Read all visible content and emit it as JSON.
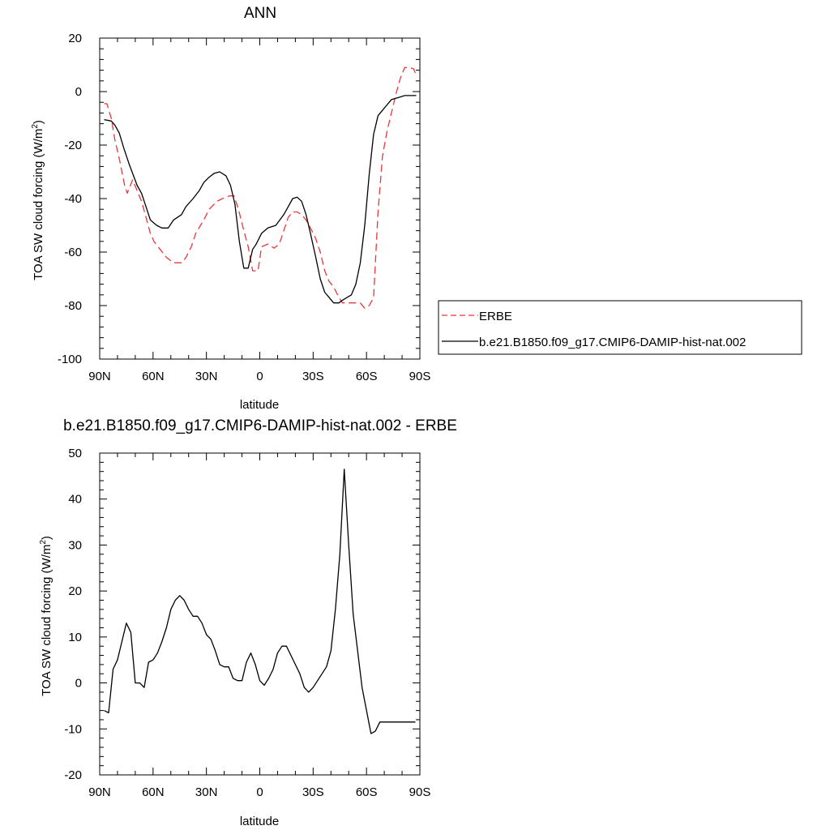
{
  "chart_data": [
    {
      "type": "line",
      "title": "ANN",
      "xlabel": "latitude",
      "ylabel": "TOA SW cloud forcing (W/m",
      "ylabel_sup": "2",
      "ylabel_close": ")",
      "xlim": [
        90,
        -90
      ],
      "ylim": [
        -100,
        20
      ],
      "x_ticks": [
        90,
        60,
        30,
        0,
        -30,
        -60,
        -90
      ],
      "x_tick_labels": [
        "90N",
        "60N",
        "30N",
        "0",
        "30S",
        "60S",
        "90S"
      ],
      "y_ticks": [
        -100,
        -80,
        -60,
        -40,
        -20,
        0,
        20
      ],
      "y_tick_labels": [
        "-100",
        "-80",
        "-60",
        "-40",
        "-20",
        "0",
        "20"
      ],
      "grid": false,
      "legend": "right-outside",
      "series": [
        {
          "name": "ERBE",
          "color": "#e8373a",
          "dash": "dashed",
          "x": [
            87.5,
            86.0,
            83.5,
            81.5,
            79.0,
            76.0,
            74.5,
            71.5,
            69.0,
            66.5,
            64.0,
            61.5,
            59.5,
            56.0,
            52.5,
            48.5,
            44.0,
            41.5,
            38.5,
            36.0,
            31.5,
            28.5,
            24.0,
            21.0,
            17.0,
            14.5,
            12.0,
            9.0,
            6.5,
            4.0,
            1.0,
            -1.0,
            -4.5,
            -8.0,
            -11.0,
            -13.5,
            -16.0,
            -18.5,
            -21.0,
            -23.5,
            -26.0,
            -28.5,
            -31.5,
            -34.0,
            -36.5,
            -39.0,
            -41.5,
            -44.5,
            -46.5,
            -49.0,
            -51.5,
            -54.0,
            -56.5,
            -59.0,
            -61.5,
            -64.0,
            -66.5,
            -69.0,
            -71.5,
            -74.0,
            -76.5,
            -79.0,
            -81.5,
            -84.0,
            -86.5,
            -88.0
          ],
          "values": [
            -4.5,
            -4.5,
            -10,
            -18,
            -25,
            -35,
            -38,
            -33,
            -37,
            -41,
            -47,
            -53,
            -56,
            -59,
            -62,
            -64,
            -64,
            -62,
            -58,
            -53,
            -48,
            -44,
            -41,
            -40,
            -39,
            -39,
            -44,
            -52,
            -58,
            -67,
            -67,
            -58,
            -57,
            -58.5,
            -57,
            -52,
            -47,
            -45,
            -45,
            -46,
            -48,
            -51,
            -55,
            -60,
            -67,
            -71,
            -73,
            -77,
            -79,
            -79,
            -79,
            -79,
            -79,
            -81,
            -80,
            -77,
            -45,
            -24,
            -15,
            -8,
            -1,
            5,
            9,
            9,
            8.5,
            6
          ]
        },
        {
          "name": "b.e21.B1850.f09_g17.CMIP6-DAMIP-hist-nat.002",
          "color": "#000000",
          "dash": "solid",
          "x": [
            87.5,
            83.5,
            81.5,
            79.0,
            76.5,
            73.5,
            69.0,
            66.5,
            64.0,
            61.5,
            58.0,
            55.0,
            51.5,
            48.5,
            44.0,
            41.5,
            37.5,
            34.0,
            31.5,
            28.5,
            25.5,
            22.5,
            19.0,
            16.5,
            14.0,
            11.5,
            9.0,
            6.5,
            4.0,
            2.0,
            -1.0,
            -4.5,
            -9.0,
            -13.5,
            -16.0,
            -18.5,
            -21.0,
            -23.5,
            -26.0,
            -28.5,
            -31.5,
            -34.0,
            -36.5,
            -39.0,
            -41.5,
            -44.5,
            -46.5,
            -49.0,
            -51.5,
            -54.0,
            -56.5,
            -59.0,
            -61.5,
            -64.0,
            -66.5,
            -69.0,
            -71.5,
            -74.0,
            -76.5,
            -79.0,
            -81.5,
            -84.0,
            -86.5,
            -88.0
          ],
          "values": [
            -10.5,
            -11,
            -12.5,
            -15.5,
            -21,
            -27,
            -35,
            -38,
            -43,
            -48,
            -50,
            -51,
            -51,
            -48,
            -46,
            -43,
            -40,
            -37,
            -34,
            -32,
            -30.5,
            -30,
            -31.5,
            -35,
            -42,
            -56,
            -66,
            -66,
            -59,
            -57,
            -53,
            -51,
            -50,
            -46,
            -43,
            -40,
            -39.5,
            -41,
            -46,
            -53,
            -62,
            -70,
            -75,
            -77,
            -79,
            -79,
            -78,
            -77,
            -76,
            -72,
            -64,
            -50,
            -31,
            -16,
            -9,
            -7,
            -5,
            -3,
            -2.5,
            -2,
            -1.5,
            -1.5,
            -1.5,
            -1.5
          ]
        }
      ]
    },
    {
      "type": "line",
      "title": "b.e21.B1850.f09_g17.CMIP6-DAMIP-hist-nat.002 - ERBE",
      "xlabel": "latitude",
      "ylabel": "TOA SW cloud forcing (W/m",
      "ylabel_sup": "2",
      "ylabel_close": ")",
      "xlim": [
        90,
        -90
      ],
      "ylim": [
        -20,
        50
      ],
      "x_ticks": [
        90,
        60,
        30,
        0,
        -30,
        -60,
        -90
      ],
      "x_tick_labels": [
        "90N",
        "60N",
        "30N",
        "0",
        "30S",
        "60S",
        "90S"
      ],
      "y_ticks": [
        -20,
        -10,
        0,
        10,
        20,
        30,
        40,
        50
      ],
      "y_tick_labels": [
        "-20",
        "-10",
        "0",
        "10",
        "20",
        "30",
        "40",
        "50"
      ],
      "grid": false,
      "series": [
        {
          "color": "#000000",
          "dash": "solid",
          "x": [
            87.5,
            85.0,
            82.5,
            80.0,
            77.5,
            75.0,
            72.5,
            70.0,
            67.5,
            65.0,
            62.5,
            60.0,
            57.5,
            55.0,
            52.5,
            50.0,
            47.5,
            45.0,
            42.5,
            40.0,
            37.5,
            35.0,
            32.5,
            30.0,
            27.5,
            25.0,
            22.5,
            20.0,
            17.5,
            15.0,
            12.5,
            10.0,
            7.5,
            5.0,
            2.5,
            0.0,
            -2.5,
            -5.0,
            -7.5,
            -10.0,
            -12.5,
            -15.0,
            -17.5,
            -20.0,
            -22.5,
            -25.0,
            -27.5,
            -30.0,
            -32.5,
            -35.0,
            -37.5,
            -40.0,
            -42.5,
            -45.0,
            -47.5,
            -50.0,
            -52.5,
            -55.0,
            -57.5,
            -60.0,
            -62.5,
            -65.0,
            -67.5,
            -70.0,
            -72.5,
            -75.0,
            -77.5,
            -80.0,
            -82.5,
            -85.0,
            -87.5
          ],
          "values": [
            -6,
            -6.5,
            3,
            5,
            9,
            13,
            11,
            0,
            0,
            -1,
            4.5,
            5,
            6.5,
            9,
            12,
            16,
            18,
            19,
            18,
            16,
            14.5,
            14.5,
            13,
            10.5,
            9.5,
            7,
            4,
            3.5,
            3.5,
            1,
            0.5,
            0.5,
            4.5,
            6.5,
            4,
            0.5,
            -0.5,
            1,
            3,
            6.5,
            8,
            8,
            6,
            4,
            2,
            -1,
            -2,
            -1,
            0.5,
            2,
            3.5,
            7,
            16,
            28,
            46.5,
            30,
            15,
            7,
            -1,
            -6,
            -11,
            -10.5,
            -8.5,
            -8.5,
            -8.5,
            -8.5,
            -8.5,
            -8.5,
            -8.5,
            -8.5,
            -8.5
          ]
        }
      ]
    }
  ]
}
